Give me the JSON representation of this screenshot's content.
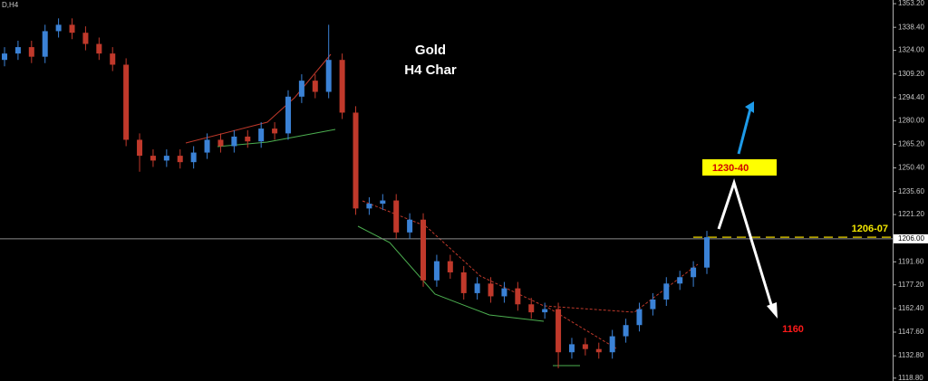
{
  "chart_data": {
    "type": "candlestick",
    "symbol_label": "D,H4",
    "title": "Gold",
    "subtitle": "H4 Char",
    "annotations": {
      "target_up": "1230-40",
      "level": "1206-07",
      "target_down": "1160"
    },
    "level_price": 1207,
    "current_price": {
      "value": 1206,
      "label": "1206.00"
    },
    "up_color": "#3b82d6",
    "down_color": "#c0392b",
    "ohlc": [
      [
        1318,
        1326,
        1314,
        1322
      ],
      [
        1322,
        1330,
        1318,
        1326
      ],
      [
        1326,
        1330,
        1316,
        1320
      ],
      [
        1320,
        1340,
        1316,
        1336
      ],
      [
        1336,
        1344,
        1332,
        1340
      ],
      [
        1340,
        1344,
        1331,
        1335
      ],
      [
        1335,
        1339,
        1324,
        1328
      ],
      [
        1328,
        1332,
        1318,
        1322
      ],
      [
        1322,
        1326,
        1311,
        1315
      ],
      [
        1315,
        1319,
        1264,
        1268
      ],
      [
        1268,
        1272,
        1248,
        1258
      ],
      [
        1258,
        1262,
        1251,
        1255
      ],
      [
        1255,
        1262,
        1251,
        1258
      ],
      [
        1258,
        1262,
        1250,
        1254
      ],
      [
        1254,
        1264,
        1250,
        1260
      ],
      [
        1260,
        1272,
        1256,
        1268
      ],
      [
        1268,
        1272,
        1260,
        1264
      ],
      [
        1264,
        1274,
        1260,
        1270
      ],
      [
        1270,
        1274,
        1263,
        1267
      ],
      [
        1267,
        1279,
        1263,
        1275
      ],
      [
        1275,
        1279,
        1268,
        1272
      ],
      [
        1272,
        1299,
        1268,
        1295
      ],
      [
        1295,
        1309,
        1291,
        1305
      ],
      [
        1305,
        1309,
        1294,
        1298
      ],
      [
        1298,
        1340,
        1294,
        1318
      ],
      [
        1318,
        1322,
        1281,
        1285
      ],
      [
        1285,
        1289,
        1221,
        1225
      ],
      [
        1225,
        1232,
        1221,
        1228
      ],
      [
        1228,
        1234,
        1224,
        1230
      ],
      [
        1230,
        1234,
        1206,
        1210
      ],
      [
        1210,
        1222,
        1206,
        1218
      ],
      [
        1218,
        1222,
        1176,
        1180
      ],
      [
        1180,
        1196,
        1176,
        1192
      ],
      [
        1192,
        1196,
        1181,
        1185
      ],
      [
        1185,
        1189,
        1168,
        1172
      ],
      [
        1172,
        1182,
        1168,
        1178
      ],
      [
        1178,
        1182,
        1166,
        1170
      ],
      [
        1170,
        1179,
        1166,
        1175
      ],
      [
        1175,
        1179,
        1161,
        1165
      ],
      [
        1165,
        1169,
        1156,
        1160
      ],
      [
        1160,
        1166,
        1156,
        1162
      ],
      [
        1162,
        1166,
        1125,
        1135
      ],
      [
        1135,
        1144,
        1131,
        1140
      ],
      [
        1140,
        1144,
        1133,
        1137
      ],
      [
        1137,
        1141,
        1131,
        1135
      ],
      [
        1135,
        1149,
        1131,
        1145
      ],
      [
        1145,
        1156,
        1141,
        1152
      ],
      [
        1152,
        1166,
        1148,
        1162
      ],
      [
        1162,
        1172,
        1158,
        1168
      ],
      [
        1168,
        1182,
        1164,
        1178
      ],
      [
        1178,
        1186,
        1174,
        1182
      ],
      [
        1182,
        1192,
        1176,
        1188
      ],
      [
        1188,
        1211,
        1184,
        1207
      ]
    ],
    "ylim": [
      1117,
      1355.5
    ],
    "yticks": [
      {
        "value": 1353.2,
        "label": "1353.20"
      },
      {
        "value": 1338.4,
        "label": "1338.40"
      },
      {
        "value": 1324,
        "label": "1324.00"
      },
      {
        "value": 1309.2,
        "label": "1309.20"
      },
      {
        "value": 1294.4,
        "label": "1294.40"
      },
      {
        "value": 1280,
        "label": "1280.00"
      },
      {
        "value": 1265.2,
        "label": "1265.20"
      },
      {
        "value": 1250.4,
        "label": "1250.40"
      },
      {
        "value": 1235.6,
        "label": "1235.60"
      },
      {
        "value": 1221.2,
        "label": "1221.20"
      },
      {
        "value": 1191.6,
        "label": "1191.60"
      },
      {
        "value": 1177.2,
        "label": "1177.20"
      },
      {
        "value": 1162.4,
        "label": "1162.40"
      },
      {
        "value": 1147.6,
        "label": "1147.60"
      },
      {
        "value": 1132.8,
        "label": "1132.80"
      },
      {
        "value": 1118.8,
        "label": "1118.80"
      }
    ]
  }
}
